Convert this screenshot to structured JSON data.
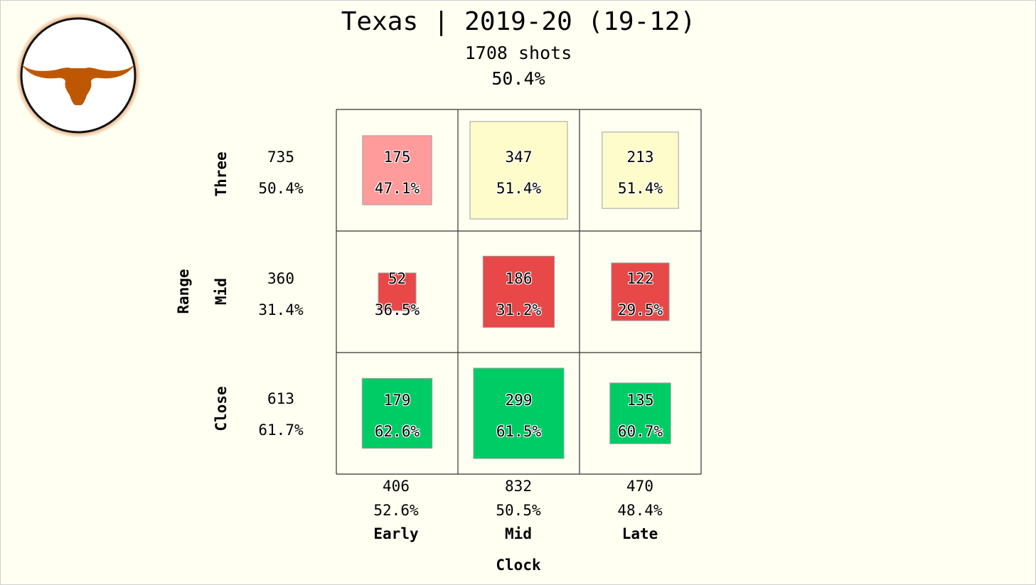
{
  "header": {
    "title": "Texas | 2019-20 (19-12)",
    "subtitle": "1708 shots",
    "overall_pct": "50.4%"
  },
  "logo": {
    "icon": "longhorn-icon",
    "ring_color": "#111111",
    "glow_color": "#d2691e",
    "horn_color": "#bf5700"
  },
  "colors": {
    "red_light": "#ff9b9b",
    "red": "#e84848",
    "yellow": "#fffccc",
    "green": "#00cc66",
    "border": "#a0a0a0"
  },
  "chart_data": {
    "type": "heatmap",
    "title": "Texas | 2019-20 (19-12)",
    "subtitle": "1708 shots",
    "overall": "50.4%",
    "xlabel": "Clock",
    "ylabel": "Range",
    "columns": [
      "Early",
      "Mid",
      "Late"
    ],
    "rows": [
      "Three",
      "Mid",
      "Close"
    ],
    "row_totals": [
      {
        "shots": "735",
        "pct": "50.4%"
      },
      {
        "shots": "360",
        "pct": "31.4%"
      },
      {
        "shots": "613",
        "pct": "61.7%"
      }
    ],
    "col_totals": [
      {
        "shots": "406",
        "pct": "52.6%"
      },
      {
        "shots": "832",
        "pct": "50.5%"
      },
      {
        "shots": "470",
        "pct": "48.4%"
      }
    ],
    "cells": [
      [
        {
          "shots": 175,
          "pct": "47.1%",
          "color": "#ff9b9b"
        },
        {
          "shots": 347,
          "pct": "51.4%",
          "color": "#fffccc"
        },
        {
          "shots": 213,
          "pct": "51.4%",
          "color": "#fffccc"
        }
      ],
      [
        {
          "shots": 52,
          "pct": "36.5%",
          "color": "#e84848"
        },
        {
          "shots": 186,
          "pct": "31.2%",
          "color": "#e84848"
        },
        {
          "shots": 122,
          "pct": "29.5%",
          "color": "#e84848"
        }
      ],
      [
        {
          "shots": 179,
          "pct": "62.6%",
          "color": "#00cc66"
        },
        {
          "shots": 299,
          "pct": "61.5%",
          "color": "#00cc66"
        },
        {
          "shots": 135,
          "pct": "60.7%",
          "color": "#00cc66"
        }
      ]
    ]
  }
}
